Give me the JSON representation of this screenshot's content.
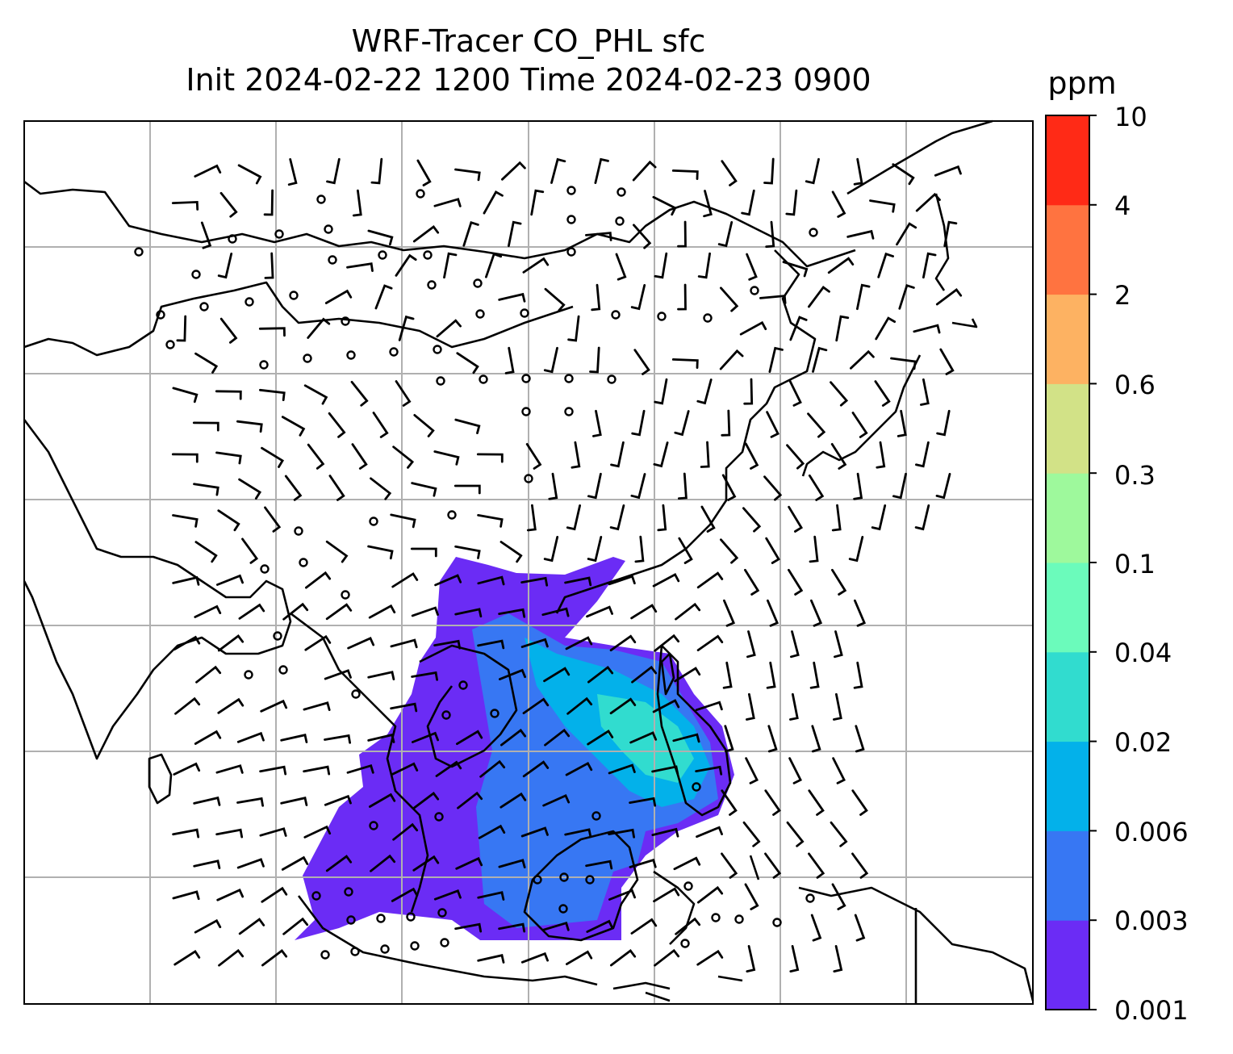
{
  "title": {
    "line1": "WRF-Tracer CO_PHL sfc",
    "line2": "Init 2024-02-22 1200 Time 2024-02-23 0900"
  },
  "colorbar": {
    "unit": "ppm",
    "levels": [
      "0.001",
      "0.003",
      "0.006",
      "0.02",
      "0.04",
      "0.1",
      "0.3",
      "0.6",
      "2",
      "4",
      "10"
    ],
    "colors": [
      "#6b2cf5",
      "#3777f3",
      "#03b1ea",
      "#31dccf",
      "#6bfbbb",
      "#9ef99c",
      "#d2e287",
      "#fdb262",
      "#ff7340",
      "#ff2a16"
    ]
  },
  "map": {
    "region": "South and East Asia",
    "layers": [
      "coastlines and borders",
      "lat/lon grid",
      "wind barbs",
      "calm-wind circles",
      "CO_PHL tracer concentration shading"
    ],
    "grid": true
  }
}
